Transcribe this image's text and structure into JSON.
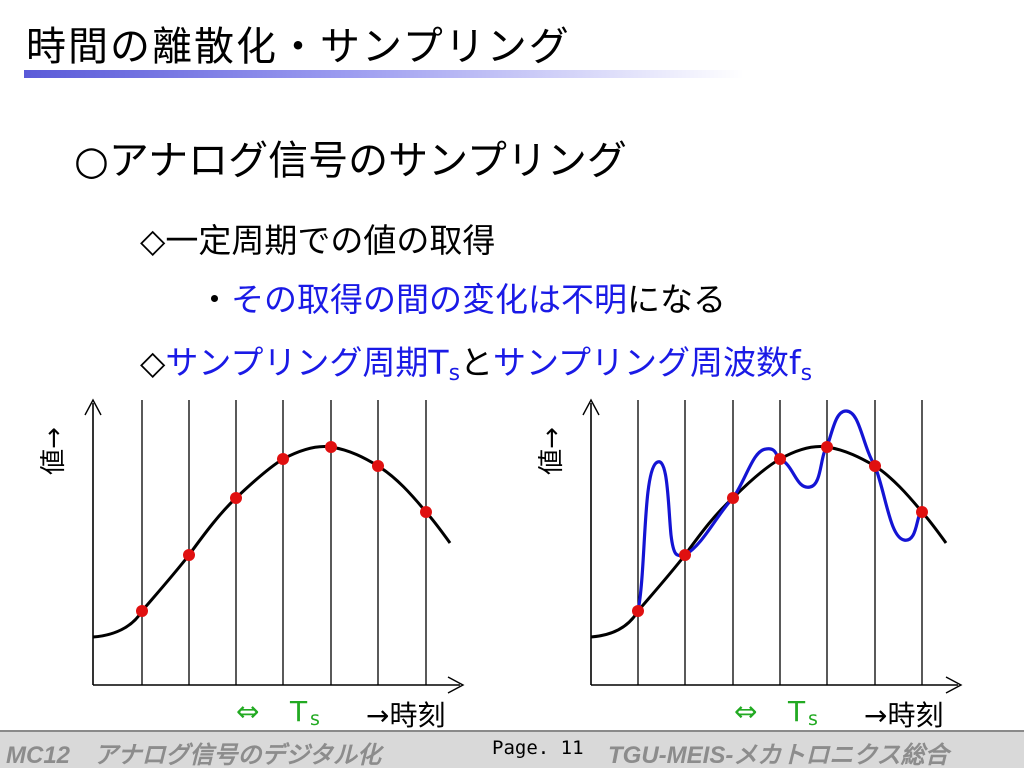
{
  "slide": {
    "title": "時間の離散化・サンプリング",
    "heading": "○アナログ信号のサンプリング",
    "line1": "◇一定周期での値の取得",
    "line2_prefix": "・",
    "line2_blue": "その取得の間の変化は不明",
    "line2_suffix": "になる",
    "line3_prefix": "◇",
    "line3_blue1": "サンプリング周期T",
    "line3_sub1": "s",
    "line3_mid": "と",
    "line3_blue2": "サンプリング周波数f",
    "line3_sub2": "s"
  },
  "diagrams": {
    "value_label": "値→",
    "time_label": "→時刻",
    "period_arrow": "⇔",
    "period_label": "T",
    "period_sub": "s"
  },
  "colors": {
    "title_underline": "#5a5ad8",
    "blue_text": "#1a1ae6",
    "sample_point": "#e01010",
    "period_green": "#22aa22",
    "waveform_blue": "#1414d4"
  },
  "footer": {
    "left": "MC12　アナログ信号のデジタル化",
    "page": "Page. 11",
    "right": "TGU-MEIS-メカトロニクス総合"
  }
}
